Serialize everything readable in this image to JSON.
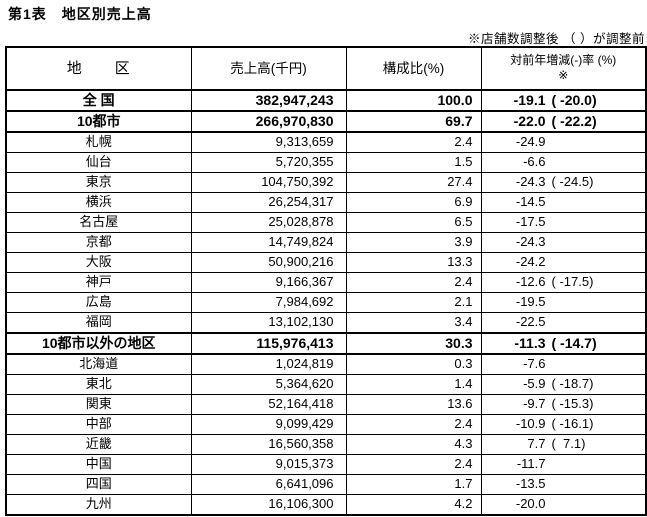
{
  "page": {
    "title": "第1表　地区別売上高",
    "note": "※店舗数調整後 （ ）が調整前"
  },
  "colors": {
    "text": "#000000",
    "border": "#000000",
    "background": "#ffffff"
  },
  "table": {
    "headers": {
      "region": "地　　区",
      "sales": "売上高(千円)",
      "share": "構成比(%)",
      "rate_line1": "対前年増減(-)率 (%)",
      "rate_line2": "※"
    },
    "rows": [
      {
        "region": "全 国",
        "sales": "382,947,243",
        "share": "100.0",
        "rate": "-19.1",
        "rate_paren": "( -20.0)",
        "bold": true,
        "thick_top": true,
        "thick_bottom": true
      },
      {
        "region": "10都市",
        "sales": "266,970,830",
        "share": "69.7",
        "rate": "-22.0",
        "rate_paren": "( -22.2)",
        "bold": true,
        "thick_top": false,
        "thick_bottom": true
      },
      {
        "region": "札幌",
        "sales": "9,313,659",
        "share": "2.4",
        "rate": "-24.9",
        "rate_paren": "",
        "bold": false,
        "thick_top": false,
        "thick_bottom": false
      },
      {
        "region": "仙台",
        "sales": "5,720,355",
        "share": "1.5",
        "rate": "-6.6",
        "rate_paren": "",
        "bold": false,
        "thick_top": false,
        "thick_bottom": false
      },
      {
        "region": "東京",
        "sales": "104,750,392",
        "share": "27.4",
        "rate": "-24.3",
        "rate_paren": "( -24.5)",
        "bold": false,
        "thick_top": false,
        "thick_bottom": false
      },
      {
        "region": "横浜",
        "sales": "26,254,317",
        "share": "6.9",
        "rate": "-14.5",
        "rate_paren": "",
        "bold": false,
        "thick_top": false,
        "thick_bottom": false
      },
      {
        "region": "名古屋",
        "sales": "25,028,878",
        "share": "6.5",
        "rate": "-17.5",
        "rate_paren": "",
        "bold": false,
        "thick_top": false,
        "thick_bottom": false
      },
      {
        "region": "京都",
        "sales": "14,749,824",
        "share": "3.9",
        "rate": "-24.3",
        "rate_paren": "",
        "bold": false,
        "thick_top": false,
        "thick_bottom": false
      },
      {
        "region": "大阪",
        "sales": "50,900,216",
        "share": "13.3",
        "rate": "-24.2",
        "rate_paren": "",
        "bold": false,
        "thick_top": false,
        "thick_bottom": false
      },
      {
        "region": "神戸",
        "sales": "9,166,367",
        "share": "2.4",
        "rate": "-12.6",
        "rate_paren": "( -17.5)",
        "bold": false,
        "thick_top": false,
        "thick_bottom": false
      },
      {
        "region": "広島",
        "sales": "7,984,692",
        "share": "2.1",
        "rate": "-19.5",
        "rate_paren": "",
        "bold": false,
        "thick_top": false,
        "thick_bottom": false
      },
      {
        "region": "福岡",
        "sales": "13,102,130",
        "share": "3.4",
        "rate": "-22.5",
        "rate_paren": "",
        "bold": false,
        "thick_top": false,
        "thick_bottom": false
      },
      {
        "region": "10都市以外の地区",
        "sales": "115,976,413",
        "share": "30.3",
        "rate": "-11.3",
        "rate_paren": "( -14.7)",
        "bold": true,
        "thick_top": true,
        "thick_bottom": true
      },
      {
        "region": "北海道",
        "sales": "1,024,819",
        "share": "0.3",
        "rate": "-7.6",
        "rate_paren": "",
        "bold": false,
        "thick_top": false,
        "thick_bottom": false
      },
      {
        "region": "東北",
        "sales": "5,364,620",
        "share": "1.4",
        "rate": "-5.9",
        "rate_paren": "( -18.7)",
        "bold": false,
        "thick_top": false,
        "thick_bottom": false
      },
      {
        "region": "関東",
        "sales": "52,164,418",
        "share": "13.6",
        "rate": "-9.7",
        "rate_paren": "( -15.3)",
        "bold": false,
        "thick_top": false,
        "thick_bottom": false
      },
      {
        "region": "中部",
        "sales": "9,099,429",
        "share": "2.4",
        "rate": "-10.9",
        "rate_paren": "( -16.1)",
        "bold": false,
        "thick_top": false,
        "thick_bottom": false
      },
      {
        "region": "近畿",
        "sales": "16,560,358",
        "share": "4.3",
        "rate": "7.7",
        "rate_paren": "(  7.1)",
        "bold": false,
        "thick_top": false,
        "thick_bottom": false
      },
      {
        "region": "中国",
        "sales": "9,015,373",
        "share": "2.4",
        "rate": "-11.7",
        "rate_paren": "",
        "bold": false,
        "thick_top": false,
        "thick_bottom": false
      },
      {
        "region": "四国",
        "sales": "6,641,096",
        "share": "1.7",
        "rate": "-13.5",
        "rate_paren": "",
        "bold": false,
        "thick_top": false,
        "thick_bottom": false
      },
      {
        "region": "九州",
        "sales": "16,106,300",
        "share": "4.2",
        "rate": "-20.0",
        "rate_paren": "",
        "bold": false,
        "thick_top": false,
        "thick_bottom": false
      }
    ]
  }
}
